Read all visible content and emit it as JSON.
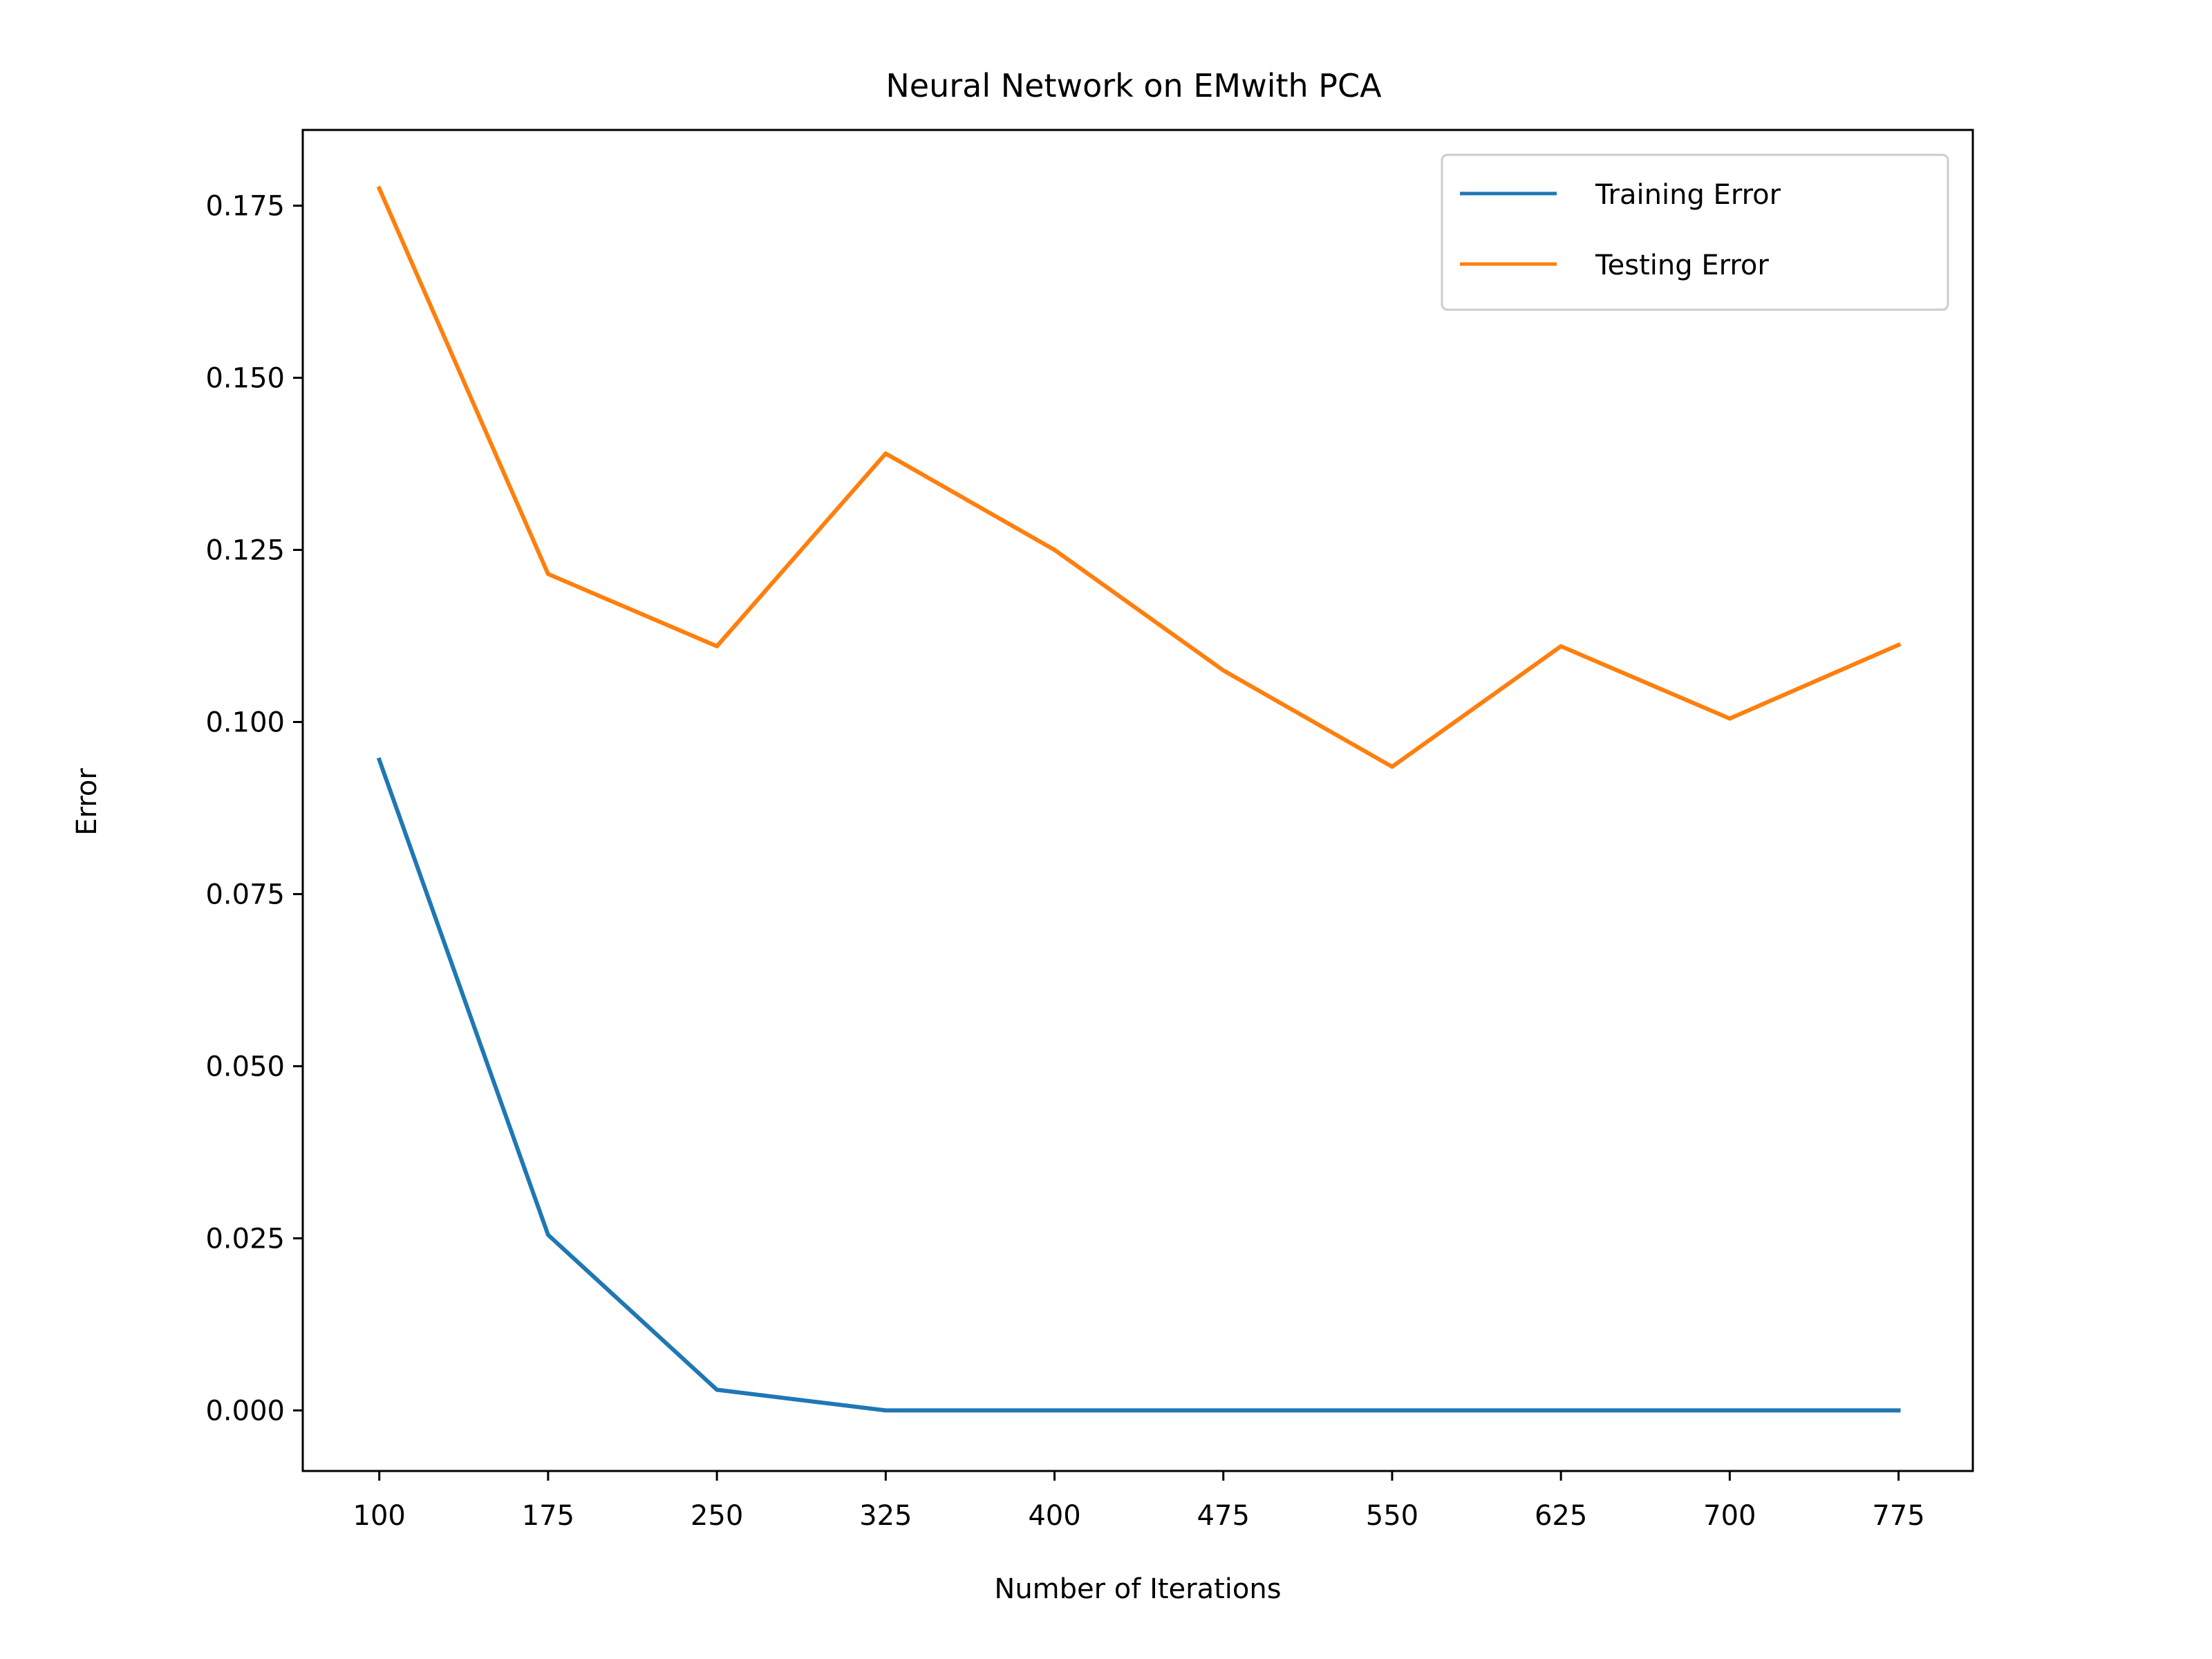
{
  "chart_data": {
    "type": "line",
    "title": "Neural Network on EMwith PCA",
    "xlabel": "Number of Iterations",
    "ylabel": "Error",
    "x": [
      100,
      175,
      250,
      325,
      400,
      475,
      550,
      625,
      700,
      775
    ],
    "xticks": [
      "100",
      "175",
      "250",
      "325",
      "400",
      "475",
      "550",
      "625",
      "700",
      "775"
    ],
    "yticks": [
      "0.000",
      "0.025",
      "0.050",
      "0.075",
      "0.100",
      "0.125",
      "0.150",
      "0.175"
    ],
    "xlim": [
      66,
      808
    ],
    "ylim": [
      -0.0088,
      0.186
    ],
    "grid": false,
    "legend_position": "top-right",
    "series": [
      {
        "name": "Training Error",
        "color": "#1f77b4",
        "values": [
          0.0945,
          0.0255,
          0.003,
          0.0,
          0.0,
          0.0,
          0.0,
          0.0,
          0.0,
          0.0
        ]
      },
      {
        "name": "Testing Error",
        "color": "#ff7f0e",
        "values": [
          0.1775,
          0.1215,
          0.111,
          0.139,
          0.125,
          0.1075,
          0.0935,
          0.111,
          0.1005,
          0.1112
        ]
      }
    ]
  }
}
